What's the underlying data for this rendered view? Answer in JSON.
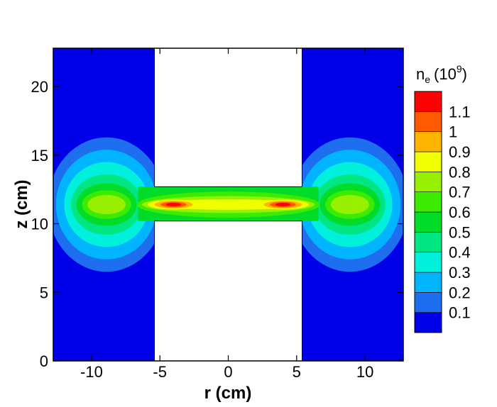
{
  "chart_data": {
    "type": "heatmap",
    "xlabel": "r (cm)",
    "ylabel": "z (cm)",
    "xlim": [
      -12.8,
      12.8
    ],
    "ylim": [
      0,
      22.8
    ],
    "x_ticks": [
      -10,
      -5,
      0,
      5,
      10
    ],
    "y_ticks": [
      0,
      5,
      10,
      15,
      20
    ],
    "colorbar": {
      "title_base": "n",
      "title_sub": "e",
      "title_paren": "(10",
      "title_sup": "9",
      "title_close": ")",
      "levels": [
        0.1,
        0.2,
        0.3,
        0.4,
        0.5,
        0.6,
        0.7,
        0.8,
        0.9,
        1,
        1.1
      ],
      "level_labels": [
        "0.1",
        "0.2",
        "0.3",
        "0.4",
        "0.5",
        "0.6",
        "0.7",
        "0.8",
        "0.9",
        "1",
        "1.1"
      ],
      "colors": [
        "#0000e8",
        "#1e6ff0",
        "#00b4ff",
        "#00f0dc",
        "#00e682",
        "#00dc28",
        "#3ceb00",
        "#96f000",
        "#f0ff00",
        "#ffb400",
        "#ff5a00",
        "#ff0000"
      ]
    },
    "field_description_regions": {
      "masked_regions": [
        {
          "r_range": [
            -5.4,
            5.4
          ],
          "z_range": [
            12.7,
            22.8
          ]
        },
        {
          "r_range": [
            -5.4,
            5.4
          ],
          "z_range": [
            0,
            10.2
          ]
        }
      ],
      "channel_z_range": [
        10.2,
        12.7
      ],
      "peaks": [
        {
          "r": -4.0,
          "z": 11.4,
          "value": 1.15
        },
        {
          "r": 4.0,
          "z": 11.4,
          "value": 1.15
        }
      ]
    }
  }
}
